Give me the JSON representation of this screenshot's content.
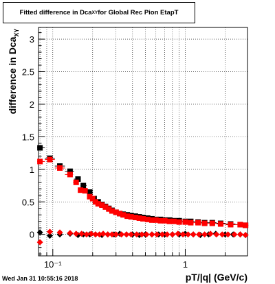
{
  "title": {
    "pre": "Fitted difference in Dca",
    "sub": "XY",
    "post": " for Global Rec Pion EtapT"
  },
  "ylabel": {
    "main": "difference in Dca",
    "sub": "XY"
  },
  "xlabel": "pT/|q| (GeV/c)",
  "timestamp": "Wed Jan 31 10:55:16 2018",
  "chart_data": {
    "type": "scatter",
    "x_scale": "log",
    "xlim": [
      0.078,
      2.95
    ],
    "ylim": [
      -0.33,
      3.18
    ],
    "grid": true,
    "x_tick_labels": [
      {
        "value": 0.1,
        "text": "10⁻¹"
      },
      {
        "value": 1,
        "text": "1"
      }
    ],
    "y_ticks": [
      0,
      0.5,
      1,
      1.5,
      2,
      2.5,
      3
    ],
    "y_tick_labels": [
      "0",
      "0.5",
      "1",
      "1.5",
      "2",
      "2.5",
      "3"
    ],
    "series": [
      {
        "color": "#000000",
        "marker": "square",
        "x": [
          0.08,
          0.095,
          0.113,
          0.135,
          0.155,
          0.17,
          0.19,
          0.205,
          0.22,
          0.235,
          0.25,
          0.265,
          0.28,
          0.3,
          0.32,
          0.34,
          0.365,
          0.39,
          0.42,
          0.45,
          0.48,
          0.52,
          0.56,
          0.6,
          0.65,
          0.7,
          0.76,
          0.82,
          0.9,
          1.0,
          1.1,
          1.25,
          1.4,
          1.6,
          1.85,
          2.2,
          2.6,
          2.85
        ],
        "y": [
          1.33,
          1.17,
          1.05,
          0.97,
          0.85,
          0.75,
          0.65,
          0.55,
          0.5,
          0.46,
          0.43,
          0.4,
          0.37,
          0.34,
          0.32,
          0.31,
          0.3,
          0.29,
          0.28,
          0.27,
          0.26,
          0.25,
          0.24,
          0.23,
          0.23,
          0.22,
          0.22,
          0.21,
          0.21,
          0.2,
          0.2,
          0.19,
          0.18,
          0.18,
          0.17,
          0.16,
          0.15,
          0.14
        ]
      },
      {
        "color": "#ff0000",
        "marker": "square",
        "x": [
          0.08,
          0.095,
          0.113,
          0.135,
          0.15,
          0.162,
          0.175,
          0.19,
          0.2,
          0.21,
          0.22,
          0.235,
          0.25,
          0.265,
          0.28,
          0.3,
          0.32,
          0.34,
          0.365,
          0.39,
          0.42,
          0.45,
          0.48,
          0.52,
          0.56,
          0.6,
          0.65,
          0.7,
          0.76,
          0.82,
          0.9,
          1.0,
          1.1,
          1.25,
          1.4,
          1.6,
          1.85,
          2.2,
          2.6,
          2.85
        ],
        "y": [
          1.12,
          1.15,
          1.02,
          0.92,
          0.8,
          0.68,
          0.67,
          0.58,
          0.55,
          0.5,
          0.47,
          0.45,
          0.42,
          0.39,
          0.36,
          0.34,
          0.32,
          0.3,
          0.28,
          0.27,
          0.26,
          0.25,
          0.24,
          0.23,
          0.22,
          0.22,
          0.21,
          0.21,
          0.2,
          0.2,
          0.19,
          0.19,
          0.18,
          0.18,
          0.17,
          0.17,
          0.16,
          0.15,
          0.15,
          0.14
        ]
      },
      {
        "color": "#000000",
        "marker": "diamond",
        "x": [
          0.08,
          0.095,
          0.113,
          0.135,
          0.155,
          0.17,
          0.19,
          0.21,
          0.235,
          0.26,
          0.29,
          0.32,
          0.36,
          0.4,
          0.45,
          0.5,
          0.56,
          0.63,
          0.7,
          0.8,
          0.9,
          1.0,
          1.15,
          1.3,
          1.5,
          1.7,
          2.0,
          2.3,
          2.6,
          2.85
        ],
        "y": [
          0.03,
          -0.02,
          0.0,
          0.01,
          -0.01,
          0.0,
          0.0,
          0.0,
          -0.01,
          0.0,
          0.0,
          0.01,
          0.0,
          0.0,
          -0.01,
          0.0,
          0.0,
          0.0,
          0.0,
          0.0,
          0.0,
          0.01,
          0.0,
          -0.01,
          0.0,
          0.01,
          0.0,
          0.0,
          0.0,
          -0.01
        ]
      },
      {
        "color": "#ff0000",
        "marker": "diamond",
        "x": [
          0.08,
          0.095,
          0.113,
          0.135,
          0.15,
          0.165,
          0.18,
          0.195,
          0.21,
          0.225,
          0.24,
          0.26,
          0.28,
          0.3,
          0.33,
          0.36,
          0.39,
          0.43,
          0.47,
          0.51,
          0.56,
          0.61,
          0.67,
          0.73,
          0.8,
          0.88,
          0.96,
          1.05,
          1.15,
          1.27,
          1.4,
          1.55,
          1.72,
          1.9,
          2.1,
          2.35,
          2.6,
          2.85
        ],
        "y": [
          -0.12,
          0.04,
          0.03,
          0.02,
          0.01,
          0.01,
          0.0,
          0.01,
          0.0,
          0.0,
          0.01,
          0.0,
          0.0,
          0.0,
          0.0,
          0.0,
          0.0,
          0.0,
          0.0,
          0.0,
          0.0,
          0.0,
          0.0,
          0.0,
          0.0,
          0.01,
          0.0,
          0.0,
          0.0,
          0.0,
          0.0,
          0.01,
          0.0,
          0.0,
          0.0,
          0.0,
          0.0,
          -0.01
        ]
      }
    ]
  }
}
